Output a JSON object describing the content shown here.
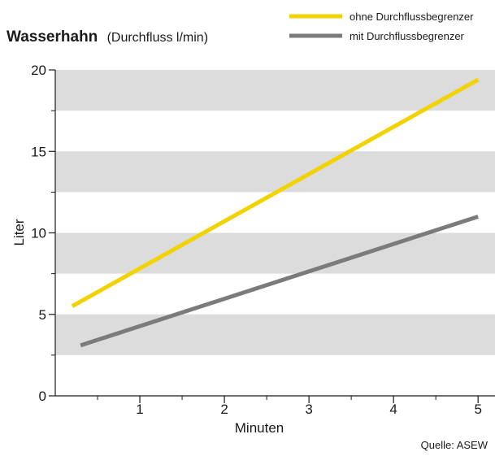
{
  "chart_data": {
    "type": "line",
    "title": "Wasserhahn",
    "subtitle": "(Durchfluss l/min)",
    "xlabel": "Minuten",
    "ylabel": "Liter",
    "xlim": [
      0,
      5.2
    ],
    "ylim": [
      0,
      20
    ],
    "x_ticks": [
      "1",
      "2",
      "3",
      "4",
      "5"
    ],
    "y_ticks": [
      "0",
      "5",
      "10",
      "15",
      "20"
    ],
    "grid_bands": true,
    "legend_position": "top-right",
    "source": "Quelle: ASEW",
    "series": [
      {
        "name": "ohne Durchflussbegrenzer",
        "color": "#f2d200",
        "x": [
          0.2,
          5
        ],
        "y": [
          5.5,
          19.4
        ]
      },
      {
        "name": "mit Durchflussbegrenzer",
        "color": "#7b7b7b",
        "x": [
          0.3,
          5
        ],
        "y": [
          3.1,
          11
        ]
      }
    ],
    "colors": {
      "band": "#dcdcdc",
      "axis": "#1a1a1a",
      "text": "#1a1a1a"
    }
  }
}
